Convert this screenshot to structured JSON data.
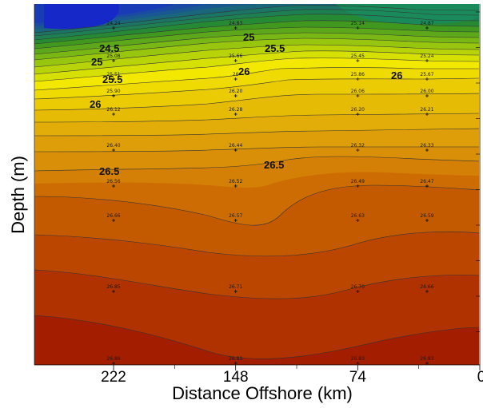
{
  "chart_data": {
    "type": "heatmap",
    "xlabel": "Distance Offshore (km)",
    "ylabel": "Depth (m)",
    "xlim": [
      270,
      0
    ],
    "x_ticks": [
      {
        "value": 222,
        "label": "222"
      },
      {
        "value": 148,
        "label": "148"
      },
      {
        "value": 74,
        "label": "74"
      },
      {
        "value": 0,
        "label": "0"
      }
    ],
    "stations": [
      {
        "x": 222,
        "values": [
          "24.24",
          "25.08",
          "25.51",
          "25.90",
          "26.12",
          "26.40",
          "26.56",
          "26.66",
          "26.85",
          "26.86"
        ]
      },
      {
        "x": 148,
        "values": [
          "24.83",
          "25.66",
          "26",
          "26.20",
          "26.28",
          "26.44",
          "26.52",
          "26.57",
          "26.71",
          "26.83"
        ]
      },
      {
        "x": 74,
        "values": [
          "25.14",
          "25.45",
          "25.86",
          "26.06",
          "26.20",
          "26.32",
          "26.49",
          "26.63",
          "26.70",
          "26.83"
        ]
      },
      {
        "x": 32,
        "values": [
          "24.87",
          "25.24",
          "25.67",
          "26.00",
          "26.21",
          "26.33",
          "26.47",
          "26.59",
          "26.66",
          "26.83"
        ]
      }
    ],
    "contour_labels": [
      "24.5",
      "25",
      "25",
      "25.5",
      "25.5",
      "26",
      "26",
      "26",
      "26.5",
      "26.5"
    ],
    "levels": [
      24.5,
      25,
      25.5,
      26,
      26.5,
      27
    ],
    "colors": {
      "low": "#1626c6",
      "mid_low": "#1f9a5a",
      "mid": "#f0e800",
      "mid_high": "#dfa20a",
      "high": "#b84000",
      "highest": "#9c1600"
    }
  }
}
